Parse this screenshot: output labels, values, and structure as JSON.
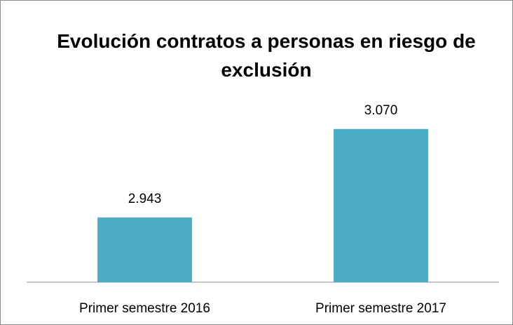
{
  "chart_data": {
    "type": "bar",
    "title": "Evolución contratos a personas en riesgo de exclusión",
    "categories": [
      "Primer semestre 2016",
      "Primer semestre 2017"
    ],
    "values": [
      2943,
      3070
    ],
    "value_labels": [
      "2.943",
      "3.070"
    ],
    "color": "#4bacc6",
    "ylim": [
      2850,
      3100
    ]
  }
}
